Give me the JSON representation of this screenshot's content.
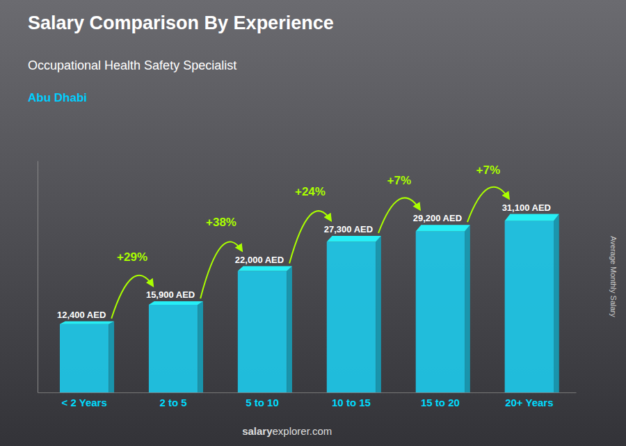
{
  "chart_data": {
    "type": "bar",
    "title": "Salary Comparison By Experience",
    "subtitle": "Occupational Health Safety Specialist",
    "annotations": [
      "Abu Dhabi"
    ],
    "watermark": [
      "salary",
      "explorer.com"
    ],
    "ylabel": "Average Monthly Salary",
    "categories": [
      "< 2 Years",
      "2 to 5",
      "5 to 10",
      "10 to 15",
      "15 to 20",
      "20+ Years"
    ],
    "values": [
      12400,
      15900,
      22000,
      27300,
      29200,
      31100
    ],
    "value_labels": [
      "12,400 AED",
      "15,900 AED",
      "22,000 AED",
      "27,300 AED",
      "29,200 AED",
      "31,100 AED"
    ],
    "change_labels": [
      "+29%",
      "+38%",
      "+24%",
      "+7%",
      "+7%"
    ],
    "color": "#1EC8E8",
    "ylim": [
      0,
      42000
    ],
    "data_labels": true,
    "tick_labels": "x",
    "grid": false
  }
}
